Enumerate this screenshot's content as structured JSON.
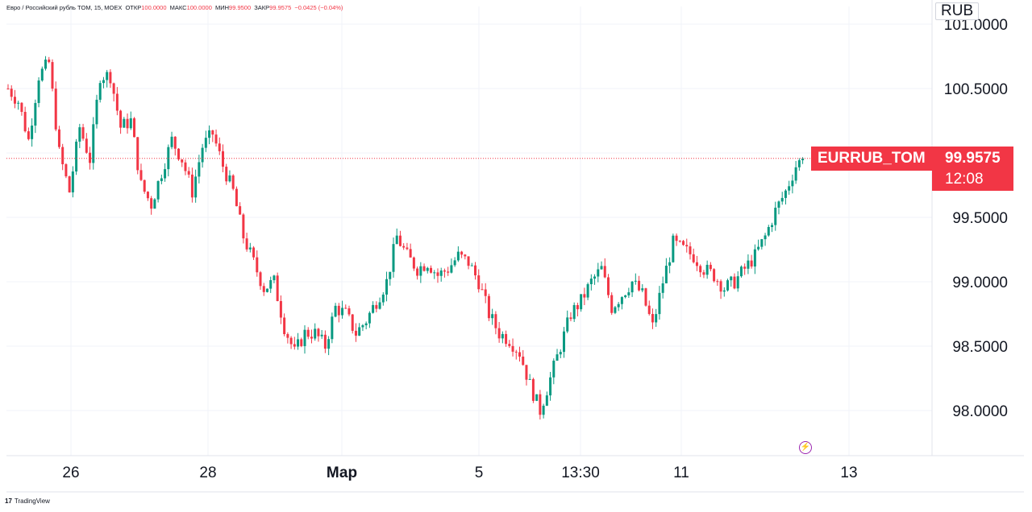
{
  "legend": {
    "symbol": "Евро / Российский рубль TOM, 15, MOEX",
    "open_label": "ОТКР",
    "open": "100.0000",
    "high_label": "МАКС",
    "high": "100.0000",
    "low_label": "МИН",
    "low": "99.9500",
    "close_label": "ЗАКР",
    "close": "99.9575",
    "change": "−0.0425 (−0.04%)"
  },
  "currency": "RUB",
  "last_price": {
    "ticker": "EURRUB_TOM",
    "price": "99.9575",
    "countdown": "12:08"
  },
  "branding": {
    "logo": "17",
    "name": "TradingView"
  },
  "colors": {
    "up": "#089981",
    "down": "#f23645",
    "grid": "#f0f3fa",
    "text": "#131722"
  },
  "icons": {
    "alert": "lightning-icon"
  },
  "chart_data": {
    "type": "candlestick",
    "y_axis": {
      "ticks": [
        "98.0000",
        "98.5000",
        "99.0000",
        "99.5000",
        "100.0000",
        "100.5000",
        "101.0000"
      ],
      "ylim": [
        97.65,
        101.1
      ]
    },
    "x_axis": {
      "ticks": [
        "26",
        "28",
        "Мар",
        "5",
        "13:30",
        "11",
        "13"
      ]
    },
    "price_path": [
      [
        0,
        100.5
      ],
      [
        3,
        100.4
      ],
      [
        6,
        100.1
      ],
      [
        9,
        100.6
      ],
      [
        12,
        100.7
      ],
      [
        15,
        100.0
      ],
      [
        18,
        99.7
      ],
      [
        21,
        100.2
      ],
      [
        24,
        99.95
      ],
      [
        27,
        100.6
      ],
      [
        30,
        100.6
      ],
      [
        33,
        100.2
      ],
      [
        36,
        100.25
      ],
      [
        39,
        99.75
      ],
      [
        42,
        99.6
      ],
      [
        45,
        99.85
      ],
      [
        48,
        100.1
      ],
      [
        51,
        99.95
      ],
      [
        54,
        99.7
      ],
      [
        57,
        100.05
      ],
      [
        60,
        100.15
      ],
      [
        63,
        99.9
      ],
      [
        66,
        99.7
      ],
      [
        69,
        99.35
      ],
      [
        72,
        99.15
      ],
      [
        75,
        98.95
      ],
      [
        78,
        99.0
      ],
      [
        81,
        98.65
      ],
      [
        84,
        98.45
      ],
      [
        87,
        98.6
      ],
      [
        90,
        98.6
      ],
      [
        93,
        98.5
      ],
      [
        96,
        98.8
      ],
      [
        99,
        98.75
      ],
      [
        102,
        98.6
      ],
      [
        105,
        98.7
      ],
      [
        108,
        98.85
      ],
      [
        111,
        99.0
      ],
      [
        114,
        99.35
      ],
      [
        117,
        99.2
      ],
      [
        120,
        99.1
      ],
      [
        123,
        99.15
      ],
      [
        126,
        99.05
      ],
      [
        129,
        99.1
      ],
      [
        132,
        99.2
      ],
      [
        135,
        99.15
      ],
      [
        138,
        99.0
      ],
      [
        141,
        98.75
      ],
      [
        144,
        98.6
      ],
      [
        147,
        98.55
      ],
      [
        150,
        98.45
      ],
      [
        153,
        98.2
      ],
      [
        156,
        98.0
      ],
      [
        159,
        98.25
      ],
      [
        162,
        98.5
      ],
      [
        165,
        98.75
      ],
      [
        168,
        98.85
      ],
      [
        171,
        99.0
      ],
      [
        174,
        99.1
      ],
      [
        177,
        98.8
      ],
      [
        180,
        98.9
      ],
      [
        183,
        99.0
      ],
      [
        186,
        98.9
      ],
      [
        189,
        98.65
      ],
      [
        192,
        99.0
      ],
      [
        195,
        99.3
      ],
      [
        198,
        99.25
      ],
      [
        201,
        99.2
      ],
      [
        204,
        99.1
      ],
      [
        207,
        99.05
      ],
      [
        210,
        98.95
      ],
      [
        213,
        99.0
      ],
      [
        216,
        99.1
      ],
      [
        219,
        99.2
      ],
      [
        222,
        99.35
      ],
      [
        225,
        99.55
      ],
      [
        228,
        99.7
      ],
      [
        231,
        99.9
      ],
      [
        233,
        99.9575
      ]
    ]
  }
}
